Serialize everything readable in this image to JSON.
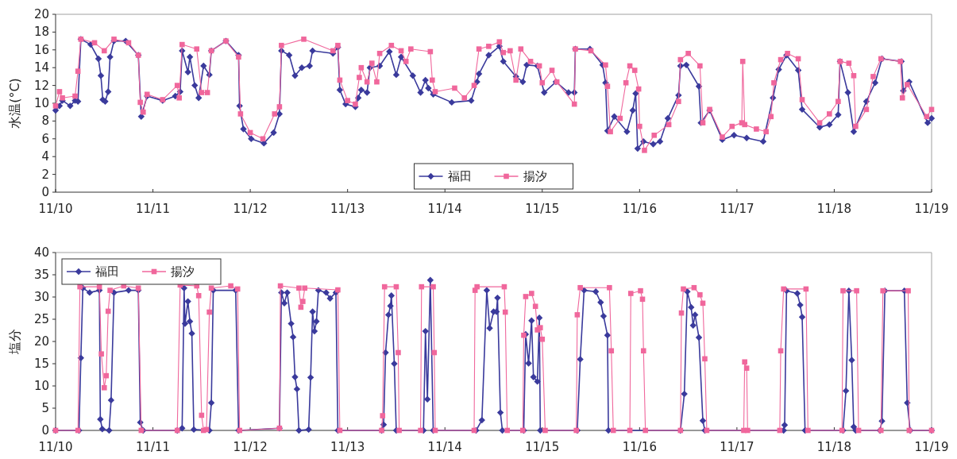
{
  "chart_data": [
    {
      "type": "line",
      "ylabel": "水温(°C)",
      "xlim": [
        "--11-10",
        "--11-19"
      ],
      "ylim": [
        0,
        20
      ],
      "yticks": [
        0,
        2,
        4,
        6,
        8,
        10,
        12,
        14,
        16,
        18,
        20
      ],
      "xticks": [
        {
          "value": "--11-10",
          "label": "11/10"
        },
        {
          "value": "--11-11",
          "label": "11/11"
        },
        {
          "value": "--11-12",
          "label": "11/12"
        },
        {
          "value": "--11-13",
          "label": "11/13"
        },
        {
          "value": "--11-14",
          "label": "11/14"
        },
        {
          "value": "--11-15",
          "label": "11/15"
        },
        {
          "value": "--11-16",
          "label": "11/16"
        },
        {
          "value": "--11-17",
          "label": "11/17"
        },
        {
          "value": "--11-18",
          "label": "11/18"
        },
        {
          "value": "--11-19",
          "label": "11/19"
        }
      ],
      "legend": "bottom",
      "line_style": "solid",
      "series": [
        {
          "name": "福田",
          "color": "#3a3a9c",
          "marker": "diamond",
          "x": [
            "--11-10T00:00",
            "--11-10T00:58",
            "--11-10T01:41",
            "--11-10T03:36",
            "--11-10T04:48",
            "--11-10T05:31",
            "--11-10T06:14",
            "--11-10T08:38",
            "--11-10T10:34",
            "--11-10T11:10",
            "--11-10T11:38",
            "--11-10T12:14",
            "--11-10T12:58",
            "--11-10T13:26",
            "--11-10T14:24",
            "--11-10T17:17",
            "--11-10T20:24",
            "--11-10T21:07",
            "--11-10T22:34",
            "--11-11T02:24",
            "--11-11T05:31",
            "--11-11T06:43",
            "--11-11T07:12",
            "--11-11T08:38",
            "--11-11T09:07",
            "--11-11T10:19",
            "--11-11T11:17",
            "--11-11T12:29",
            "--11-11T13:55",
            "--11-11T14:24",
            "--11-11T18:00",
            "--11-11T21:07",
            "--11-11T21:22",
            "--11-11T22:19",
            "--11-12T00:14",
            "--11-12T03:22",
            "--11-12T05:46",
            "--11-12T07:12",
            "--11-12T07:41",
            "--11-12T09:36",
            "--11-12T11:02",
            "--11-12T12:43",
            "--11-12T14:38",
            "--11-12T15:22",
            "--11-12T20:24",
            "--11-12T21:36",
            "--11-12T22:05",
            "--11-12T23:31",
            "--11-13T01:55",
            "--11-13T02:38",
            "--11-13T03:22",
            "--11-13T04:48",
            "--11-13T05:31",
            "--11-13T07:55",
            "--11-13T10:19",
            "--11-13T12:00",
            "--11-13T13:12",
            "--11-13T16:05",
            "--11-13T18:00",
            "--11-13T19:12",
            "--11-13T19:55",
            "--11-13T21:07",
            "--11-14T01:41",
            "--11-14T06:29",
            "--11-14T07:55",
            "--11-14T08:24",
            "--11-14T10:48",
            "--11-14T13:26",
            "--11-14T14:24",
            "--11-14T17:31",
            "--11-14T19:12",
            "--11-14T20:10",
            "--11-14T22:48",
            "--11-15T00:29",
            "--11-15T03:22",
            "--11-15T06:29",
            "--11-15T07:55",
            "--11-15T08:10",
            "--11-15T11:46",
            "--11-15T14:53",
            "--11-15T15:36",
            "--11-15T16:05",
            "--11-15T17:46",
            "--11-15T20:53",
            "--11-15T22:19",
            "--11-15T23:02",
            "--11-15T23:31",
            "--11-16T00:58",
            "--11-16T03:22",
            "--11-16T05:02",
            "--11-16T06:58",
            "--11-16T09:36",
            "--11-16T10:05",
            "--11-16T11:31",
            "--11-16T14:38",
            "--11-16T15:07",
            "--11-16T17:17",
            "--11-16T20:24",
            "--11-16T23:17",
            "--11-17T02:24",
            "--11-17T06:29",
            "--11-17T08:53",
            "--11-17T10:19",
            "--11-17T12:14",
            "--11-17T15:07",
            "--11-17T16:05",
            "--11-17T20:24",
            "--11-17T22:48",
            "--11-18T00:58",
            "--11-18T01:26",
            "--11-18T03:22",
            "--11-18T04:48",
            "--11-18T07:55",
            "--11-18T10:05",
            "--11-18T11:46",
            "--11-18T16:34",
            "--11-18T17:02",
            "--11-18T18:29",
            "--11-18T23:02",
            "--11-19T00:00"
          ],
          "values": [
            9.2,
            9.7,
            10.3,
            9.7,
            10.3,
            10.2,
            17.2,
            16.6,
            15.0,
            13.1,
            10.4,
            10.2,
            11.3,
            15.2,
            17.0,
            17.0,
            15.4,
            8.5,
            10.8,
            10.3,
            10.8,
            11.3,
            15.9,
            13.5,
            15.2,
            12.0,
            10.6,
            14.2,
            13.2,
            15.9,
            17.0,
            15.4,
            9.7,
            7.1,
            6.0,
            5.5,
            6.7,
            8.8,
            15.9,
            15.4,
            13.1,
            14.0,
            14.2,
            15.9,
            15.6,
            16.3,
            11.5,
            9.9,
            9.6,
            10.6,
            11.5,
            11.2,
            14.0,
            14.2,
            15.8,
            13.2,
            15.2,
            13.1,
            11.2,
            12.6,
            11.7,
            11.0,
            10.1,
            10.3,
            12.4,
            13.3,
            15.4,
            16.4,
            14.7,
            13.0,
            12.4,
            14.3,
            14.2,
            11.2,
            12.4,
            11.2,
            11.2,
            16.1,
            16.1,
            14.3,
            12.3,
            6.9,
            8.5,
            6.8,
            9.2,
            11.1,
            4.9,
            5.7,
            5.4,
            5.7,
            8.3,
            10.9,
            14.2,
            14.3,
            11.9,
            7.8,
            9.2,
            5.9,
            6.4,
            6.1,
            5.7,
            10.6,
            13.8,
            15.4,
            13.7,
            9.3,
            7.3,
            7.6,
            8.7,
            14.7,
            11.2,
            6.8,
            10.2,
            12.3,
            15.0,
            14.7,
            11.4,
            12.4,
            7.8,
            8.3
          ]
        },
        {
          "name": "揚汐",
          "color": "#f0679c",
          "marker": "square",
          "x": [
            "--11-10T00:00",
            "--11-10T00:58",
            "--11-10T01:41",
            "--11-10T04:48",
            "--11-10T05:31",
            "--11-10T06:14",
            "--11-10T09:36",
            "--11-10T12:00",
            "--11-10T14:24",
            "--11-10T18:00",
            "--11-10T20:24",
            "--11-10T20:53",
            "--11-10T21:36",
            "--11-10T22:34",
            "--11-11T02:24",
            "--11-11T06:00",
            "--11-11T06:29",
            "--11-11T07:12",
            "--11-11T10:48",
            "--11-11T12:00",
            "--11-11T13:26",
            "--11-11T14:24",
            "--11-11T18:00",
            "--11-11T21:07",
            "--11-11T21:36",
            "--11-12T00:00",
            "--11-12T03:07",
            "--11-12T06:00",
            "--11-12T07:12",
            "--11-12T07:41",
            "--11-12T13:12",
            "--11-12T20:24",
            "--11-12T21:36",
            "--11-12T22:05",
            "--11-13T00:00",
            "--11-13T01:55",
            "--11-13T02:53",
            "--11-13T03:22",
            "--11-13T04:48",
            "--11-13T06:00",
            "--11-13T07:12",
            "--11-13T07:55",
            "--11-13T10:48",
            "--11-13T13:12",
            "--11-13T14:24",
            "--11-13T15:36",
            "--11-13T20:24",
            "--11-13T20:53",
            "--11-13T21:36",
            "--11-14T02:24",
            "--11-14T04:48",
            "--11-14T07:12",
            "--11-14T08:24",
            "--11-14T10:48",
            "--11-14T13:26",
            "--11-14T14:24",
            "--11-14T16:05",
            "--11-14T17:31",
            "--11-14T18:43",
            "--11-14T21:07",
            "--11-14T23:17",
            "--11-15T00:00",
            "--11-15T02:24",
            "--11-15T03:36",
            "--11-15T07:55",
            "--11-15T08:10",
            "--11-15T12:00",
            "--11-15T15:36",
            "--11-15T16:05",
            "--11-15T16:48",
            "--11-15T19:12",
            "--11-15T20:38",
            "--11-15T21:36",
            "--11-15T22:48",
            "--11-15T23:46",
            "--11-16T00:00",
            "--11-16T01:12",
            "--11-16T03:36",
            "--11-16T07:12",
            "--11-16T09:36",
            "--11-16T10:05",
            "--11-16T12:00",
            "--11-16T14:53",
            "--11-16T15:36",
            "--11-16T17:17",
            "--11-16T20:24",
            "--11-16T22:48",
            "--11-17T01:12",
            "--11-17T01:26",
            "--11-17T01:55",
            "--11-17T04:48",
            "--11-17T07:12",
            "--11-17T08:24",
            "--11-17T09:07",
            "--11-17T10:48",
            "--11-17T12:29",
            "--11-17T15:07",
            "--11-17T16:05",
            "--11-17T20:24",
            "--11-17T22:48",
            "--11-18T00:58",
            "--11-18T01:26",
            "--11-18T03:36",
            "--11-18T04:48",
            "--11-18T05:17",
            "--11-18T07:55",
            "--11-18T09:36",
            "--11-18T11:31",
            "--11-18T16:19",
            "--11-18T16:48",
            "--11-18T18:00",
            "--11-18T22:48",
            "--11-19T00:00"
          ],
          "values": [
            9.7,
            11.3,
            10.6,
            10.8,
            13.6,
            17.2,
            16.8,
            15.9,
            17.2,
            16.8,
            15.4,
            10.1,
            9.0,
            11.0,
            10.4,
            12.0,
            10.6,
            16.6,
            16.1,
            11.2,
            11.2,
            15.9,
            17.0,
            15.2,
            8.8,
            6.7,
            6.0,
            8.8,
            9.6,
            16.5,
            17.2,
            15.9,
            16.5,
            12.6,
            10.3,
            9.9,
            12.9,
            14.0,
            12.4,
            14.5,
            12.4,
            15.6,
            16.5,
            15.9,
            14.7,
            16.1,
            15.8,
            12.6,
            11.3,
            11.7,
            10.6,
            12.0,
            16.1,
            16.4,
            16.9,
            15.7,
            15.9,
            12.6,
            16.1,
            14.7,
            14.2,
            12.3,
            13.7,
            12.4,
            9.9,
            16.1,
            15.9,
            14.3,
            11.9,
            6.8,
            8.3,
            12.3,
            14.2,
            13.7,
            11.6,
            7.4,
            4.7,
            6.4,
            7.6,
            10.2,
            14.9,
            15.6,
            14.2,
            7.8,
            9.3,
            6.2,
            7.4,
            7.8,
            14.7,
            7.6,
            7.1,
            6.8,
            8.5,
            12.3,
            14.9,
            15.6,
            15.0,
            10.4,
            7.8,
            8.8,
            10.2,
            14.7,
            14.5,
            13.1,
            7.4,
            9.3,
            13.0,
            15.0,
            14.7,
            10.6,
            12.1,
            8.5,
            9.3
          ]
        }
      ]
    },
    {
      "type": "line",
      "ylabel": "塩分",
      "xlim": [
        "--11-10",
        "--11-19"
      ],
      "ylim": [
        0,
        40
      ],
      "yticks": [
        0,
        5,
        10,
        15,
        20,
        25,
        30,
        35,
        40
      ],
      "xticks": [
        {
          "value": "--11-10",
          "label": "11/10"
        },
        {
          "value": "--11-11",
          "label": "11/11"
        },
        {
          "value": "--11-12",
          "label": "11/12"
        },
        {
          "value": "--11-13",
          "label": "11/13"
        },
        {
          "value": "--11-14",
          "label": "11/14"
        },
        {
          "value": "--11-15",
          "label": "11/15"
        },
        {
          "value": "--11-16",
          "label": "11/16"
        },
        {
          "value": "--11-17",
          "label": "11/17"
        },
        {
          "value": "--11-18",
          "label": "11/18"
        },
        {
          "value": "--11-19",
          "label": "11/19"
        }
      ],
      "legend": "top left",
      "line_style": "solid",
      "series": [
        {
          "name": "福田",
          "color": "#3a3a9c",
          "marker": "diamond",
          "x": [
            "--11-10T00:00",
            "--11-10T05:46",
            "--11-10T06:14",
            "--11-10T06:43",
            "--11-10T08:24",
            "--11-10T10:48",
            "--11-10T11:02",
            "--11-10T11:31",
            "--11-10T13:12",
            "--11-10T13:41",
            "--11-10T14:24",
            "--11-10T18:00",
            "--11-10T20:24",
            "--11-10T20:53",
            "--11-10T21:36",
            "--11-11T06:00",
            "--11-11T07:12",
            "--11-11T07:41",
            "--11-11T07:55",
            "--11-11T08:38",
            "--11-11T09:07",
            "--11-11T09:36",
            "--11-11T10:05",
            "--11-11T13:55",
            "--11-11T14:24",
            "--11-11T14:53",
            "--11-11T20:24",
            "--11-11T21:07",
            "--11-12T07:12",
            "--11-12T07:41",
            "--11-12T08:24",
            "--11-12T09:07",
            "--11-12T10:05",
            "--11-12T10:34",
            "--11-12T11:02",
            "--11-12T11:31",
            "--11-12T12:00",
            "--11-12T14:24",
            "--11-12T14:53",
            "--11-12T15:22",
            "--11-12T15:50",
            "--11-12T16:19",
            "--11-12T16:48",
            "--11-12T18:43",
            "--11-12T19:41",
            "--11-12T21:07",
            "--11-12T21:36",
            "--11-13T08:24",
            "--11-13T08:53",
            "--11-13T09:22",
            "--11-13T10:05",
            "--11-13T10:34",
            "--11-13T10:48",
            "--11-13T11:31",
            "--11-13T12:00",
            "--11-13T18:43",
            "--11-13T19:12",
            "--11-13T19:41",
            "--11-13T20:24",
            "--11-13T21:07",
            "--11-14T07:41",
            "--11-14T09:07",
            "--11-14T10:19",
            "--11-14T11:02",
            "--11-14T12:00",
            "--11-14T12:43",
            "--11-14T12:58",
            "--11-14T13:41",
            "--11-14T14:10",
            "--11-14T19:26",
            "--11-14T19:55",
            "--11-14T20:38",
            "--11-14T21:22",
            "--11-14T21:50",
            "--11-14T22:48",
            "--11-14T23:17",
            "--11-14T23:31",
            "--11-15T08:38",
            "--11-15T09:22",
            "--11-15T10:19",
            "--11-15T13:12",
            "--11-15T14:24",
            "--11-15T15:07",
            "--11-15T16:05",
            "--11-15T16:19",
            "--11-16T10:05",
            "--11-16T11:02",
            "--11-16T11:46",
            "--11-16T12:43",
            "--11-16T13:12",
            "--11-16T13:41",
            "--11-16T14:38",
            "--11-16T15:36",
            "--11-16T16:05",
            "--11-17T11:31",
            "--11-17T11:46",
            "--11-17T12:14",
            "--11-17T14:53",
            "--11-17T15:36",
            "--11-17T16:05",
            "--11-17T16:48",
            "--11-18T02:10",
            "--11-18T02:53",
            "--11-18T03:36",
            "--11-18T04:19",
            "--11-18T04:48",
            "--11-18T05:17",
            "--11-18T11:17",
            "--11-18T11:46",
            "--11-18T12:29",
            "--11-18T17:17",
            "--11-18T18:00",
            "--11-18T18:43",
            "--11-19T00:00"
          ],
          "values": [
            0,
            0,
            16.3,
            32,
            31,
            31.5,
            2.5,
            0.3,
            0,
            6.8,
            31,
            31.5,
            31.5,
            1.8,
            0,
            0,
            0.5,
            32,
            24,
            29,
            24.5,
            21.8,
            0.2,
            0,
            6.2,
            31.5,
            31.5,
            0,
            0.5,
            31,
            28.6,
            31,
            24,
            21,
            12,
            9.3,
            0,
            0.2,
            11.9,
            26.7,
            22.3,
            24.5,
            31.5,
            31,
            29.7,
            31,
            0,
            0,
            1.3,
            17.5,
            26,
            28,
            30.3,
            15,
            0,
            0,
            22.3,
            7,
            33.8,
            0,
            0,
            2.3,
            31.5,
            23,
            26.7,
            26.7,
            29.8,
            4,
            0,
            0,
            21.6,
            15.1,
            24.7,
            12,
            11,
            25.3,
            0,
            0,
            16,
            31.5,
            31.2,
            28.8,
            25.7,
            21.4,
            0,
            0,
            8.2,
            31.2,
            27.7,
            23.6,
            26,
            20.9,
            2.2,
            0,
            0,
            1.2,
            31.4,
            30.8,
            28.2,
            25.5,
            0,
            0,
            8.9,
            31.4,
            15.8,
            0.8,
            0,
            0,
            2.1,
            31.4,
            31.4,
            6.2,
            0,
            0
          ]
        },
        {
          "name": "揚汐",
          "color": "#f0679c",
          "marker": "square",
          "x": [
            "--11-10T00:00",
            "--11-10T05:31",
            "--11-10T06:00",
            "--11-10T10:48",
            "--11-10T11:17",
            "--11-10T12:00",
            "--11-10T12:29",
            "--11-10T12:58",
            "--11-10T13:26",
            "--11-10T16:48",
            "--11-10T20:24",
            "--11-10T21:07",
            "--11-11T06:00",
            "--11-11T06:43",
            "--11-11T10:48",
            "--11-11T11:17",
            "--11-11T12:00",
            "--11-11T12:29",
            "--11-11T13:12",
            "--11-11T13:55",
            "--11-11T14:24",
            "--11-11T19:12",
            "--11-11T20:53",
            "--11-11T21:22",
            "--11-12T07:12",
            "--11-12T07:26",
            "--11-12T12:00",
            "--11-12T12:29",
            "--11-12T12:58",
            "--11-12T13:26",
            "--11-12T21:36",
            "--11-12T22:05",
            "--11-13T08:24",
            "--11-13T08:38",
            "--11-13T09:07",
            "--11-13T12:00",
            "--11-13T12:29",
            "--11-13T12:43",
            "--11-13T18:00",
            "--11-13T18:14",
            "--11-13T21:07",
            "--11-13T21:22",
            "--11-13T21:36",
            "--11-14T07:12",
            "--11-14T07:26",
            "--11-14T07:55",
            "--11-14T14:38",
            "--11-14T14:53",
            "--11-14T15:22",
            "--11-14T19:12",
            "--11-14T19:26",
            "--11-14T19:55",
            "--11-14T21:22",
            "--11-14T22:19",
            "--11-14T22:48",
            "--11-14T23:31",
            "--11-15T00:00",
            "--11-15T00:43",
            "--11-15T08:24",
            "--11-15T08:38",
            "--11-15T09:22",
            "--11-15T16:34",
            "--11-15T17:02",
            "--11-15T17:31",
            "--11-15T21:36",
            "--11-15T21:50",
            "--11-16T00:14",
            "--11-16T00:43",
            "--11-16T00:58",
            "--11-16T01:26",
            "--11-16T10:05",
            "--11-16T10:19",
            "--11-16T10:48",
            "--11-16T13:26",
            "--11-16T14:53",
            "--11-16T15:36",
            "--11-16T16:05",
            "--11-16T16:34",
            "--11-17T01:41",
            "--11-17T01:55",
            "--11-17T02:24",
            "--11-17T02:38",
            "--11-17T10:34",
            "--11-17T10:48",
            "--11-17T11:31",
            "--11-17T17:02",
            "--11-17T17:31",
            "--11-18T01:55",
            "--11-18T02:10",
            "--11-18T05:31",
            "--11-18T06:00",
            "--11-18T11:31",
            "--11-18T12:00",
            "--11-18T18:14",
            "--11-18T18:29",
            "--11-19T00:00"
          ],
          "values": [
            0,
            0,
            32.3,
            32.3,
            17.2,
            9.6,
            12.3,
            26.8,
            31.5,
            32.5,
            32,
            0,
            0,
            32.7,
            32.5,
            30.3,
            3.4,
            0,
            0.2,
            26.6,
            32,
            32.5,
            31.8,
            0,
            0.5,
            32.5,
            32,
            27.7,
            29,
            32,
            31.6,
            0,
            0,
            3.3,
            32.3,
            32.3,
            17.5,
            0,
            0,
            32.3,
            32.3,
            17.5,
            0,
            0,
            31.5,
            32.3,
            32.3,
            26.6,
            0,
            0,
            21.4,
            30.1,
            30.8,
            27.9,
            22.6,
            23.1,
            20.5,
            0,
            0,
            26,
            32.1,
            32.1,
            17.9,
            0,
            0,
            30.8,
            31.4,
            29.5,
            17.9,
            0,
            0,
            26.4,
            31.8,
            32.1,
            30.5,
            28.6,
            16.1,
            0,
            0,
            15.4,
            14,
            0,
            0,
            17.9,
            31.8,
            31.8,
            0,
            0,
            31.4,
            31.4,
            0,
            0,
            31.4,
            31.4,
            0,
            0
          ]
        }
      ]
    }
  ]
}
